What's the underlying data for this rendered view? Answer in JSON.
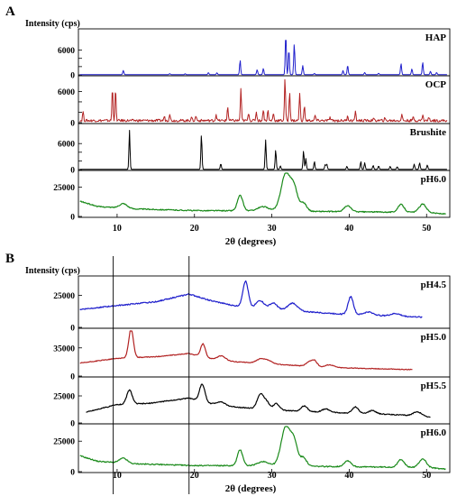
{
  "figure": {
    "panel_a_label": "A",
    "panel_b_label": "B"
  },
  "chart_data": [
    {
      "panel": "A",
      "type": "line",
      "ylabel": "Intensity (cps)",
      "xlabel": "2θ (degrees)",
      "xlim": [
        5,
        53
      ],
      "xticks": [
        10,
        20,
        30,
        40,
        50
      ],
      "grid": false,
      "stacked": true,
      "colors": {
        "HAP": "#1f1fcc",
        "OCP": "#b22222",
        "Brushite": "#000000",
        "pH6.0": "#1a8a1a"
      },
      "subplots": [
        {
          "name": "HAP",
          "kind": "stick",
          "ylim": [
            0,
            10500
          ],
          "yticks": [
            0,
            2000,
            4000,
            6000
          ],
          "ytick_labels": [
            "0",
            "",
            "",
            "6000"
          ],
          "peaks": [
            [
              10.8,
              1000
            ],
            [
              16.8,
              250
            ],
            [
              18.8,
              200
            ],
            [
              21.8,
              500
            ],
            [
              22.9,
              450
            ],
            [
              25.9,
              3500
            ],
            [
              28.1,
              1200
            ],
            [
              28.9,
              1500
            ],
            [
              31.8,
              9800
            ],
            [
              32.2,
              6200
            ],
            [
              32.9,
              7500
            ],
            [
              34.0,
              2200
            ],
            [
              35.5,
              300
            ],
            [
              39.2,
              1000
            ],
            [
              39.8,
              2300
            ],
            [
              42.0,
              500
            ],
            [
              43.8,
              350
            ],
            [
              46.7,
              2700
            ],
            [
              48.1,
              1400
            ],
            [
              49.5,
              3000
            ],
            [
              50.5,
              800
            ],
            [
              51.3,
              500
            ]
          ]
        },
        {
          "name": "OCP",
          "kind": "stick",
          "ylim": [
            0,
            8500
          ],
          "yticks": [
            0,
            2000,
            4000,
            6000
          ],
          "ytick_labels": [
            "0",
            "",
            "",
            "6000"
          ],
          "peaks": [
            [
              5.6,
              1800
            ],
            [
              9.4,
              6200
            ],
            [
              9.8,
              6000
            ],
            [
              16.1,
              800
            ],
            [
              16.8,
              1400
            ],
            [
              19.6,
              700
            ],
            [
              20.2,
              900
            ],
            [
              22.8,
              1200
            ],
            [
              24.3,
              2700
            ],
            [
              26.0,
              6200
            ],
            [
              27.0,
              1600
            ],
            [
              28.0,
              1700
            ],
            [
              28.9,
              2200
            ],
            [
              29.5,
              2000
            ],
            [
              30.2,
              1500
            ],
            [
              31.7,
              8000
            ],
            [
              32.3,
              5500
            ],
            [
              33.6,
              5200
            ],
            [
              34.2,
              2800
            ],
            [
              35.6,
              1000
            ],
            [
              37.5,
              600
            ],
            [
              39.8,
              1000
            ],
            [
              40.8,
              1600
            ],
            [
              43.1,
              400
            ],
            [
              44.6,
              400
            ],
            [
              46.8,
              1200
            ],
            [
              48.3,
              700
            ],
            [
              49.5,
              1100
            ],
            [
              50.3,
              600
            ]
          ],
          "noise": true
        },
        {
          "name": "Brushite",
          "kind": "stick",
          "ylim": [
            0,
            10000
          ],
          "yticks": [
            0,
            2000,
            4000,
            6000
          ],
          "ytick_labels": [
            "0",
            "",
            "",
            "6000"
          ],
          "peaks": [
            [
              11.6,
              9000
            ],
            [
              20.9,
              8000
            ],
            [
              23.4,
              1300
            ],
            [
              29.2,
              6800
            ],
            [
              30.5,
              4500
            ],
            [
              31.1,
              800
            ],
            [
              34.1,
              4300
            ],
            [
              34.4,
              2500
            ],
            [
              35.5,
              1800
            ],
            [
              36.9,
              1100
            ],
            [
              37.1,
              1200
            ],
            [
              39.7,
              700
            ],
            [
              41.5,
              1800
            ],
            [
              42.0,
              1500
            ],
            [
              43.1,
              900
            ],
            [
              43.8,
              800
            ],
            [
              45.3,
              700
            ],
            [
              46.2,
              600
            ],
            [
              48.4,
              1200
            ],
            [
              49.1,
              1500
            ],
            [
              50.1,
              1000
            ]
          ]
        },
        {
          "name": "pH6.0",
          "kind": "curve",
          "ylim": [
            0,
            37000
          ],
          "yticks": [
            0,
            25000
          ],
          "ytick_labels": [
            "0",
            "25000"
          ],
          "baseline": [
            [
              5.2,
              13000
            ],
            [
              7.5,
              8500
            ],
            [
              12,
              6500
            ],
            [
              20,
              5000
            ],
            [
              30,
              4800
            ],
            [
              40,
              4000
            ],
            [
              50,
              3500
            ],
            [
              52.5,
              2000
            ]
          ],
          "peaks": [
            [
              10.8,
              4000,
              0.5
            ],
            [
              25.9,
              13000,
              0.35
            ],
            [
              28.9,
              3500,
              0.7
            ],
            [
              31.8,
              32000,
              0.6
            ],
            [
              32.9,
              18000,
              0.45
            ],
            [
              34.1,
              7000,
              0.4
            ],
            [
              39.8,
              5000,
              0.45
            ],
            [
              46.7,
              6500,
              0.4
            ],
            [
              49.5,
              7000,
              0.45
            ]
          ]
        }
      ]
    },
    {
      "panel": "B",
      "type": "line",
      "ylabel": "Intensity (cps)",
      "xlabel": "2θ (degrees)",
      "xlim": [
        5,
        53
      ],
      "xticks": [
        10,
        20,
        30,
        40,
        50
      ],
      "grid": false,
      "stacked": true,
      "reference_lines_x": [
        9.5,
        19.3
      ],
      "colors": {
        "pH4.5": "#1f1fcc",
        "pH5.0": "#b22222",
        "pH5.5": "#000000",
        "pH6.0": "#1a8a1a"
      },
      "subplots": [
        {
          "name": "pH4.5",
          "kind": "curve",
          "ylim": [
            0,
            38000
          ],
          "yticks": [
            0,
            25000
          ],
          "ytick_labels": [
            "0",
            "25000"
          ],
          "baseline": [
            [
              5.2,
              14000
            ],
            [
              10,
              17000
            ],
            [
              15,
              20000
            ],
            [
              19.3,
              26000
            ],
            [
              22,
              21000
            ],
            [
              25,
              17000
            ],
            [
              30,
              14000
            ],
            [
              35,
              12000
            ],
            [
              40,
              10000
            ],
            [
              45,
              9000
            ],
            [
              49.5,
              8000
            ]
          ],
          "peaks": [
            [
              26.6,
              20000,
              0.35
            ],
            [
              28.5,
              6000,
              0.5
            ],
            [
              30.2,
              5000,
              0.5
            ],
            [
              32.7,
              6000,
              0.6
            ],
            [
              40.2,
              14000,
              0.35
            ],
            [
              42.5,
              2500,
              0.6
            ],
            [
              46,
              2000,
              0.6
            ]
          ]
        },
        {
          "name": "pH5.0",
          "kind": "curve",
          "ylim": [
            0,
            56000
          ],
          "yticks": [
            0,
            35000
          ],
          "ytick_labels": [
            "0",
            "35000"
          ],
          "baseline": [
            [
              5.2,
              16000
            ],
            [
              10,
              22000
            ],
            [
              15,
              24000
            ],
            [
              19.3,
              28000
            ],
            [
              22,
              22000
            ],
            [
              25,
              18000
            ],
            [
              30,
              15000
            ],
            [
              35,
              12000
            ],
            [
              40,
              10000
            ],
            [
              46,
              8500
            ],
            [
              48.2,
              8000
            ]
          ],
          "peaks": [
            [
              11.8,
              36000,
              0.3
            ],
            [
              21.1,
              16000,
              0.3
            ],
            [
              23.5,
              5000,
              0.5
            ],
            [
              28.5,
              5000,
              0.5
            ],
            [
              29.5,
              4000,
              0.5
            ],
            [
              34.8,
              5000,
              0.4
            ],
            [
              35.5,
              7000,
              0.35
            ],
            [
              37.5,
              3000,
              0.5
            ]
          ]
        },
        {
          "name": "pH5.5",
          "kind": "curve",
          "ylim": [
            0,
            40000
          ],
          "yticks": [
            0,
            25000
          ],
          "ytick_labels": [
            "0",
            "25000"
          ],
          "baseline": [
            [
              6,
              10000
            ],
            [
              10,
              17000
            ],
            [
              14,
              18000
            ],
            [
              19.3,
              23000
            ],
            [
              22,
              18000
            ],
            [
              25,
              15000
            ],
            [
              30,
              12000
            ],
            [
              35,
              10500
            ],
            [
              40,
              9000
            ],
            [
              45,
              8000
            ],
            [
              50,
              6000
            ],
            [
              50.5,
              5000
            ]
          ],
          "peaks": [
            [
              11.6,
              13000,
              0.35
            ],
            [
              21.0,
              16000,
              0.35
            ],
            [
              23.4,
              3000,
              0.5
            ],
            [
              28.5,
              13000,
              0.4
            ],
            [
              29.3,
              7000,
              0.4
            ],
            [
              30.6,
              6000,
              0.4
            ],
            [
              34.2,
              5000,
              0.4
            ],
            [
              37.0,
              3000,
              0.5
            ],
            [
              40.8,
              6000,
              0.4
            ],
            [
              43.0,
              3000,
              0.5
            ],
            [
              48.8,
              4000,
              0.5
            ]
          ]
        },
        {
          "name": "pH6.0",
          "kind": "curve",
          "ylim": [
            0,
            37000
          ],
          "yticks": [
            0,
            25000
          ],
          "ytick_labels": [
            "0",
            "25000"
          ],
          "baseline": [
            [
              5.2,
              13000
            ],
            [
              7.5,
              8500
            ],
            [
              12,
              6500
            ],
            [
              20,
              5000
            ],
            [
              30,
              4800
            ],
            [
              40,
              4000
            ],
            [
              50,
              3500
            ],
            [
              52.5,
              2000
            ]
          ],
          "peaks": [
            [
              10.8,
              4000,
              0.5
            ],
            [
              25.9,
              13000,
              0.35
            ],
            [
              28.9,
              3500,
              0.7
            ],
            [
              31.8,
              32000,
              0.6
            ],
            [
              32.9,
              18000,
              0.45
            ],
            [
              34.1,
              7000,
              0.4
            ],
            [
              39.8,
              5000,
              0.45
            ],
            [
              46.7,
              6500,
              0.4
            ],
            [
              49.5,
              7000,
              0.45
            ]
          ]
        }
      ]
    }
  ]
}
